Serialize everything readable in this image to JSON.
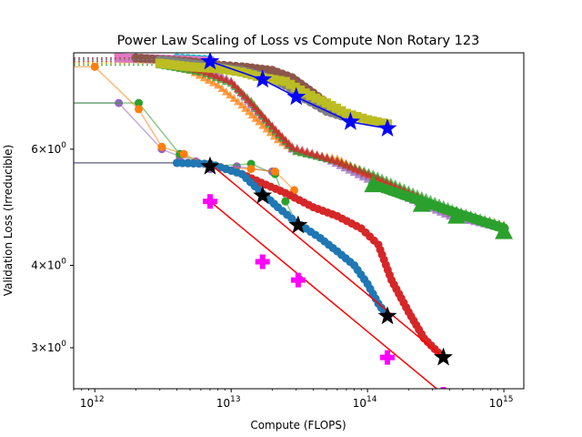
{
  "chart_data": {
    "type": "scatter",
    "title": "Power Law Scaling of Loss vs Compute Non Rotary 123",
    "xlabel": "Compute (FLOPS)",
    "ylabel": "Validation Loss (Irreducible)",
    "xscale": "log",
    "yscale": "log",
    "xlim": [
      700000000000.0,
      1400000000000000.0
    ],
    "ylim": [
      2.6,
      8.4
    ],
    "x_ticks": [
      {
        "value": 1000000000000.0,
        "base": "10",
        "exp": "12"
      },
      {
        "value": 10000000000000.0,
        "base": "10",
        "exp": "13"
      },
      {
        "value": 100000000000000.0,
        "base": "10",
        "exp": "14"
      },
      {
        "value": 1000000000000000.0,
        "base": "10",
        "exp": "15"
      }
    ],
    "y_ticks": [
      {
        "value": 3,
        "coef": "3",
        "base": "10",
        "exp": "0"
      },
      {
        "value": 4,
        "coef": "4",
        "base": "10",
        "exp": "0"
      },
      {
        "value": 6,
        "coef": "6",
        "base": "10",
        "exp": "0"
      }
    ],
    "grid": false,
    "colors": {
      "blue": "#1f77b4",
      "orange": "#ff7f0e",
      "green": "#2ca02c",
      "red": "#d62728",
      "purple": "#9467bd",
      "brown": "#8c564b",
      "pink": "#e377c2",
      "gray": "#7f7f7f",
      "olive": "#bcbd22",
      "cyan": "#17becf",
      "fit_line": "#ff0000",
      "blue_star": "#0000ff",
      "black_star": "#000000",
      "magenta_cross": "#ff00ff"
    },
    "lower_curves": [
      {
        "color": "#9467bd",
        "start": [
          700000000000.0,
          7.05
        ],
        "points": [
          [
            1500000000000.0,
            7.05
          ],
          [
            3100000000000.0,
            6.0
          ],
          [
            4200000000000.0,
            5.85
          ],
          [
            5500000000000.0,
            5.75
          ],
          [
            7000000000000.0,
            5.6
          ],
          [
            11000000000000.0,
            5.65
          ],
          [
            20000000000000.0,
            5.55
          ]
        ],
        "markers": true
      },
      {
        "color": "#2ca02c",
        "start": [
          700000000000.0,
          7.05
        ],
        "points": [
          [
            2100000000000.0,
            7.05
          ],
          [
            4200000000000.0,
            5.9
          ],
          [
            7000000000000.0,
            5.65
          ],
          [
            14000000000000.0,
            5.7
          ],
          [
            21000000000000.0,
            5.5
          ],
          [
            25000000000000.0,
            5.0
          ],
          [
            31000000000000.0,
            4.6
          ]
        ],
        "markers": true
      },
      {
        "color": "#ff7f0e",
        "start": [
          700000000000.0,
          8.0
        ],
        "points": [
          [
            1000000000000.0,
            8.0
          ],
          [
            2100000000000.0,
            6.9
          ],
          [
            3100000000000.0,
            6.05
          ],
          [
            4500000000000.0,
            5.9
          ],
          [
            7000000000000.0,
            5.65
          ],
          [
            14000000000000.0,
            5.6
          ],
          [
            21000000000000.0,
            5.55
          ],
          [
            29000000000000.0,
            5.2
          ]
        ],
        "markers": true
      },
      {
        "color": "#d62728",
        "start": [
          700000000000.0,
          5.72
        ],
        "points": [
          [
            4000000000000.0,
            5.72
          ],
          [
            7000000000000.0,
            5.7
          ],
          [
            12000000000000.0,
            5.5
          ],
          [
            18000000000000.0,
            5.3
          ],
          [
            25000000000000.0,
            5.15
          ],
          [
            40000000000000.0,
            4.9
          ],
          [
            60000000000000.0,
            4.75
          ],
          [
            90000000000000.0,
            4.55
          ],
          [
            120000000000000.0,
            4.3
          ],
          [
            150000000000000.0,
            3.8
          ],
          [
            200000000000000.0,
            3.4
          ],
          [
            260000000000000.0,
            3.1
          ],
          [
            330000000000000.0,
            2.95
          ],
          [
            360000000000000.0,
            2.9
          ]
        ],
        "markers": true
      },
      {
        "color": "#1f77b4",
        "start": [
          700000000000.0,
          5.72
        ],
        "points": [
          [
            4000000000000.0,
            5.72
          ],
          [
            7000000000000.0,
            5.7
          ],
          [
            12000000000000.0,
            5.5
          ],
          [
            16000000000000.0,
            5.2
          ],
          [
            22000000000000.0,
            4.9
          ],
          [
            30000000000000.0,
            4.65
          ],
          [
            45000000000000.0,
            4.4
          ],
          [
            60000000000000.0,
            4.2
          ],
          [
            80000000000000.0,
            4.0
          ],
          [
            100000000000000.0,
            3.75
          ],
          [
            120000000000000.0,
            3.5
          ],
          [
            140000000000000.0,
            3.35
          ]
        ],
        "markers": true
      }
    ],
    "upper_curves": [
      {
        "color": "#ff7f0e",
        "points": [
          [
            700000000000.0,
            8.1
          ],
          [
            3000000000000.0,
            8.1
          ],
          [
            5000000000000.0,
            7.9
          ],
          [
            8000000000000.0,
            7.5
          ],
          [
            12000000000000.0,
            7.0
          ],
          [
            16000000000000.0,
            6.6
          ],
          [
            22000000000000.0,
            6.2
          ],
          [
            30000000000000.0,
            5.95
          ],
          [
            60000000000000.0,
            5.8
          ],
          [
            100000000000000.0,
            5.5
          ],
          [
            200000000000000.0,
            5.1
          ],
          [
            400000000000000.0,
            4.8
          ],
          [
            1000000000000000.0,
            4.6
          ]
        ]
      },
      {
        "color": "#9467bd",
        "points": [
          [
            700000000000.0,
            8.2
          ],
          [
            3000000000000.0,
            8.2
          ],
          [
            6000000000000.0,
            8.0
          ],
          [
            10000000000000.0,
            7.6
          ],
          [
            14000000000000.0,
            7.0
          ],
          [
            20000000000000.0,
            6.5
          ],
          [
            28000000000000.0,
            6.0
          ],
          [
            50000000000000.0,
            5.8
          ],
          [
            100000000000000.0,
            5.4
          ],
          [
            200000000000000.0,
            5.05
          ],
          [
            400000000000000.0,
            4.75
          ],
          [
            1000000000000000.0,
            4.55
          ]
        ]
      },
      {
        "color": "#2ca02c",
        "points": [
          [
            700000000000.0,
            8.05
          ],
          [
            3000000000000.0,
            8.05
          ],
          [
            6000000000000.0,
            7.85
          ],
          [
            10000000000000.0,
            7.55
          ],
          [
            14000000000000.0,
            7.1
          ],
          [
            20000000000000.0,
            6.45
          ],
          [
            30000000000000.0,
            5.95
          ],
          [
            60000000000000.0,
            5.75
          ],
          [
            110000000000000.0,
            5.5
          ],
          [
            250000000000000.0,
            5.1
          ],
          [
            450000000000000.0,
            4.85
          ],
          [
            1000000000000000.0,
            4.6
          ]
        ]
      },
      {
        "color": "#d62728",
        "points": [
          [
            700000000000.0,
            8.15
          ],
          [
            3000000000000.0,
            8.15
          ],
          [
            6000000000000.0,
            7.9
          ],
          [
            10000000000000.0,
            7.6
          ],
          [
            14000000000000.0,
            7.05
          ],
          [
            20000000000000.0,
            6.5
          ],
          [
            28000000000000.0,
            6.05
          ],
          [
            60000000000000.0,
            5.75
          ],
          [
            110000000000000.0,
            5.45
          ],
          [
            250000000000000.0,
            5.05
          ]
        ]
      }
    ],
    "top_curves": [
      {
        "color": "#17becf",
        "points": [
          [
            700000000000.0,
            8.25
          ],
          [
            4000000000000.0,
            8.25
          ],
          [
            7000000000000.0,
            8.2
          ]
        ]
      },
      {
        "color": "#e377c2",
        "points": [
          [
            700000000000.0,
            8.25
          ],
          [
            1500000000000.0,
            8.25
          ],
          [
            4000000000000.0,
            8.2
          ],
          [
            7000000000000.0,
            8.15
          ]
        ]
      },
      {
        "color": "#8c564b",
        "points": [
          [
            700000000000.0,
            8.25
          ],
          [
            2000000000000.0,
            8.25
          ],
          [
            5000000000000.0,
            8.15
          ],
          [
            8000000000000.0,
            8.05
          ],
          [
            12000000000000.0,
            8.0
          ],
          [
            20000000000000.0,
            7.9
          ],
          [
            28000000000000.0,
            7.7
          ],
          [
            40000000000000.0,
            7.3
          ],
          [
            55000000000000.0,
            6.95
          ],
          [
            70000000000000.0,
            6.8
          ]
        ]
      },
      {
        "color": "#7f7f7f",
        "points": [
          [
            700000000000.0,
            8.2
          ],
          [
            3000000000000.0,
            8.2
          ],
          [
            5000000000000.0,
            8.1
          ],
          [
            8000000000000.0,
            8.0
          ],
          [
            12000000000000.0,
            7.9
          ],
          [
            17000000000000.0,
            7.75
          ],
          [
            25000000000000.0,
            7.5
          ],
          [
            35000000000000.0,
            7.15
          ],
          [
            50000000000000.0,
            6.85
          ],
          [
            70000000000000.0,
            6.7
          ]
        ]
      },
      {
        "color": "#bcbd22",
        "points": [
          [
            700000000000.0,
            8.1
          ],
          [
            3000000000000.0,
            8.1
          ],
          [
            5000000000000.0,
            8.0
          ],
          [
            8000000000000.0,
            7.95
          ],
          [
            12000000000000.0,
            7.85
          ],
          [
            17000000000000.0,
            7.7
          ],
          [
            25000000000000.0,
            7.6
          ],
          [
            35000000000000.0,
            7.3
          ],
          [
            50000000000000.0,
            7.05
          ],
          [
            70000000000000.0,
            6.8
          ],
          [
            100000000000000.0,
            6.65
          ],
          [
            140000000000000.0,
            6.55
          ]
        ]
      }
    ],
    "fit_lines": [
      {
        "color": "#ff0000",
        "points": [
          [
            7000000000000.0,
            5.7
          ],
          [
            360000000000000.0,
            2.9
          ]
        ]
      },
      {
        "color": "#ff0000",
        "points": [
          [
            7000000000000.0,
            5.0
          ],
          [
            360000000000000.0,
            2.55
          ]
        ]
      },
      {
        "color": "#0000ff",
        "points": [
          [
            7000000000000.0,
            8.15
          ],
          [
            17000000000000.0,
            7.65
          ],
          [
            30000000000000.0,
            7.2
          ],
          [
            75000000000000.0,
            6.6
          ],
          [
            140000000000000.0,
            6.45
          ]
        ]
      },
      {
        "color": "#ff7f0e",
        "points": [
          [
            110000000000000.0,
            5.3
          ],
          [
            250000000000000.0,
            5.0
          ],
          [
            450000000000000.0,
            4.8
          ],
          [
            1000000000000000.0,
            4.55
          ]
        ]
      }
    ],
    "stars_black": [
      [
        7000000000000.0,
        5.65
      ],
      [
        17000000000000.0,
        5.1
      ],
      [
        31000000000000.0,
        4.6
      ],
      [
        140000000000000.0,
        3.35
      ],
      [
        360000000000000.0,
        2.9
      ]
    ],
    "stars_blue": [
      [
        7000000000000.0,
        8.15
      ],
      [
        17000000000000.0,
        7.65
      ],
      [
        30000000000000.0,
        7.2
      ],
      [
        75000000000000.0,
        6.6
      ],
      [
        140000000000000.0,
        6.45
      ]
    ],
    "triangles_green": [
      [
        110000000000000.0,
        5.3
      ],
      [
        250000000000000.0,
        4.95
      ],
      [
        450000000000000.0,
        4.75
      ],
      [
        1000000000000000.0,
        4.5
      ]
    ],
    "crosses_magenta": [
      [
        7000000000000.0,
        5.0
      ],
      [
        17000000000000.0,
        4.05
      ],
      [
        31000000000000.0,
        3.8
      ],
      [
        140000000000000.0,
        2.9
      ],
      [
        360000000000000.0,
        2.55
      ]
    ]
  }
}
